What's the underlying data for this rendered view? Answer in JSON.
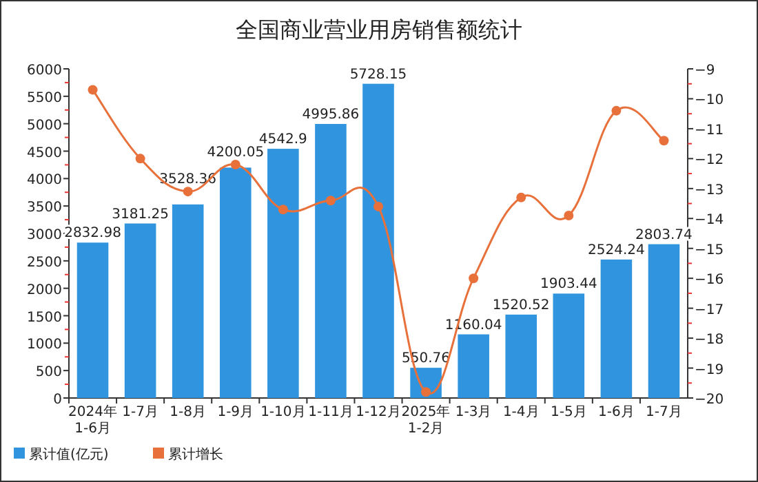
{
  "chart_data": {
    "type": "bar",
    "title": "全国商业营业用房销售额统计",
    "categories": [
      "2024年\n1-6月",
      "1-7月",
      "1-8月",
      "1-9月",
      "1-10月",
      "1-11月",
      "1-12月",
      "2025年\n1-2月",
      "1-3月",
      "1-4月",
      "1-5月",
      "1-6月",
      "1-7月"
    ],
    "series": [
      {
        "name": "累计值(亿元)",
        "color": "#3095de",
        "values": [
          2832.98,
          3181.25,
          3528.36,
          4200.05,
          4542.9,
          4995.86,
          5728.15,
          550.76,
          1160.04,
          1520.52,
          1903.44,
          2524.24,
          2803.74
        ],
        "value_labels": [
          "2832.98",
          "3181.25",
          "3528.36",
          "4200.05",
          "4542.9",
          "4995.86",
          "5728.15",
          "550.76",
          "1160.04",
          "1520.52",
          "1903.44",
          "2524.24",
          "2803.74"
        ]
      },
      {
        "name": "累计增长",
        "type": "line",
        "axis": "y2",
        "color": "#e8703a",
        "values": [
          -9.7,
          -12.0,
          -13.1,
          -12.2,
          -13.7,
          -13.4,
          -13.6,
          -19.8,
          -16.0,
          -13.3,
          -13.9,
          -10.4,
          -11.4
        ]
      }
    ],
    "marker": "circle",
    "legend": "bottom left",
    "ylim": [
      0,
      6000
    ],
    "yticks": [
      0,
      500,
      1000,
      1500,
      2000,
      2500,
      3000,
      3500,
      4000,
      4500,
      5000,
      5500,
      6000
    ],
    "y2lim": [
      -20,
      -9
    ],
    "y2ticks": [
      -20,
      -19,
      -18,
      -17,
      -16,
      -15,
      -14,
      -13,
      -12,
      -11,
      -10,
      -9
    ]
  }
}
